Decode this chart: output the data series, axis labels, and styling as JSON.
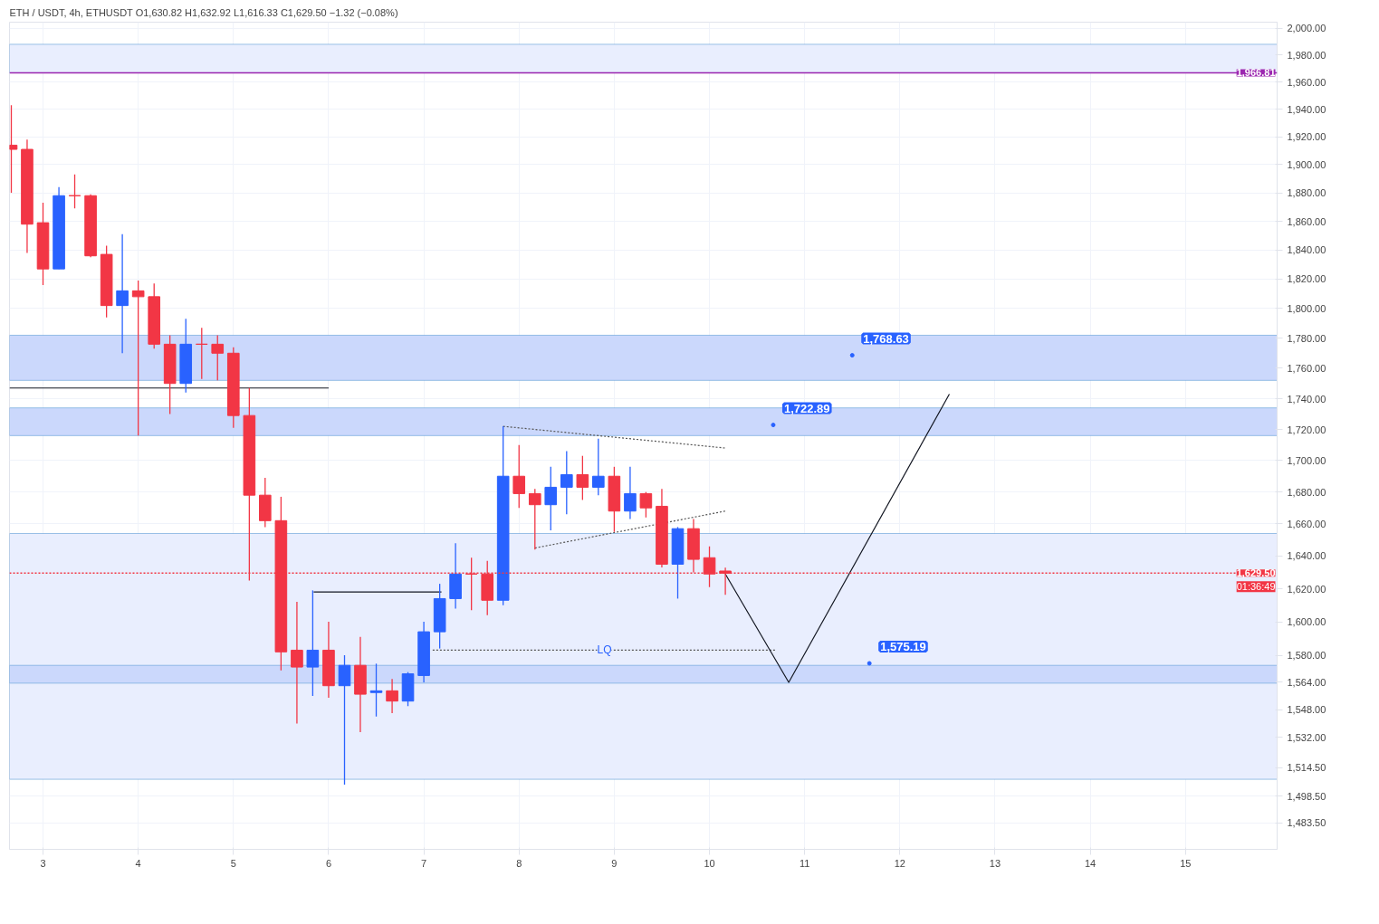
{
  "chart_data": {
    "type": "candlestick",
    "title": "ETH / USDT, 4h, ETHUSDT  O1,630.82  H1,632.92  L1,616.33  C1,629.50  −1.32 (−0.08%)",
    "x": [
      2.667,
      2.833,
      3,
      3.167,
      3.333,
      3.5,
      3.667,
      3.833,
      4,
      4.167,
      4.333,
      4.5,
      4.667,
      4.833,
      5,
      5.167,
      5.333,
      5.5,
      5.667,
      5.833,
      6,
      6.167,
      6.333,
      6.5,
      6.667,
      6.833,
      7,
      7.167,
      7.333,
      7.5,
      7.667,
      7.833,
      8,
      8.167,
      8.333,
      8.5,
      8.667,
      8.833,
      9,
      9.167,
      9.333,
      9.5,
      9.667,
      9.833,
      10,
      10.167
    ],
    "ohlc": [
      [
        1914,
        1943,
        1880,
        1911
      ],
      [
        1911,
        1918,
        1838,
        1858
      ],
      [
        1859,
        1873,
        1816,
        1827
      ],
      [
        1827,
        1884,
        1827,
        1878
      ],
      [
        1878,
        1893,
        1869,
        1878
      ],
      [
        1878,
        1879,
        1835,
        1836
      ],
      [
        1837,
        1843,
        1794,
        1802
      ],
      [
        1802,
        1851,
        1770,
        1812
      ],
      [
        1812,
        1819,
        1716,
        1808
      ],
      [
        1808,
        1817,
        1773,
        1776
      ],
      [
        1776,
        1782,
        1730,
        1750
      ],
      [
        1750,
        1793,
        1744,
        1776
      ],
      [
        1776,
        1787,
        1753,
        1776
      ],
      [
        1776,
        1782,
        1752,
        1770
      ],
      [
        1770,
        1774,
        1721,
        1729
      ],
      [
        1729,
        1747,
        1625,
        1678
      ],
      [
        1678,
        1689,
        1658,
        1662
      ],
      [
        1662,
        1677,
        1571,
        1582
      ],
      [
        1583,
        1612,
        1540,
        1573
      ],
      [
        1573,
        1619,
        1556,
        1583
      ],
      [
        1583,
        1600,
        1555,
        1562
      ],
      [
        1562,
        1580,
        1505,
        1574
      ],
      [
        1574,
        1591,
        1535,
        1557
      ],
      [
        1558,
        1575,
        1544,
        1559
      ],
      [
        1559,
        1566,
        1546,
        1553
      ],
      [
        1553,
        1570,
        1550,
        1569
      ],
      [
        1568,
        1600,
        1564,
        1594
      ],
      [
        1594,
        1623,
        1584,
        1614
      ],
      [
        1614,
        1648,
        1608,
        1629
      ],
      [
        1629,
        1639,
        1607,
        1629
      ],
      [
        1629,
        1637,
        1604,
        1613
      ],
      [
        1613,
        1722,
        1610,
        1690
      ],
      [
        1690,
        1710,
        1670,
        1679
      ],
      [
        1679,
        1682,
        1644,
        1672
      ],
      [
        1672,
        1696,
        1656,
        1683
      ],
      [
        1683,
        1706,
        1666,
        1691
      ],
      [
        1691,
        1703,
        1675,
        1683
      ],
      [
        1683,
        1714,
        1678,
        1690
      ],
      [
        1690,
        1696,
        1655,
        1668
      ],
      [
        1668,
        1696,
        1663,
        1679
      ],
      [
        1679,
        1680,
        1664,
        1670
      ],
      [
        1671,
        1682,
        1633,
        1635
      ],
      [
        1635,
        1658,
        1614,
        1657
      ],
      [
        1657,
        1663,
        1630,
        1638
      ],
      [
        1639,
        1646,
        1621,
        1629
      ],
      [
        1630.82,
        1632.92,
        1616.33,
        1629.5
      ]
    ],
    "colors": [
      "#f23645",
      "#f23645",
      "#f23645",
      "#2962ff",
      "#f23645",
      "#f23645",
      "#f23645",
      "#2962ff",
      "#f23645",
      "#f23645",
      "#f23645",
      "#2962ff",
      "#f23645",
      "#f23645",
      "#f23645",
      "#f23645",
      "#f23645",
      "#f23645",
      "#f23645",
      "#2962ff",
      "#f23645",
      "#2962ff",
      "#f23645",
      "#2962ff",
      "#f23645",
      "#2962ff",
      "#2962ff",
      "#2962ff",
      "#2962ff",
      "#f23645",
      "#f23645",
      "#2962ff",
      "#f23645",
      "#f23645",
      "#2962ff",
      "#2962ff",
      "#f23645",
      "#2962ff",
      "#f23645",
      "#2962ff",
      "#f23645",
      "#f23645",
      "#2962ff",
      "#f23645",
      "#f23645",
      "#f23645"
    ],
    "series": [
      {
        "type": "line",
        "color": "#131722",
        "x": [
          2.648,
          6.0
        ],
        "values": [
          1747,
          1747
        ]
      },
      {
        "type": "line",
        "color": "#131722",
        "x": [
          5.843,
          7.185
        ],
        "values": [
          1618,
          1618
        ]
      },
      {
        "type": "line",
        "color": "#555555",
        "line_style": "dotted",
        "x": [
          7.833,
          10.167
        ],
        "values": [
          1722,
          1708
        ]
      },
      {
        "type": "line",
        "color": "#555555",
        "line_style": "dotted",
        "x": [
          8.167,
          10.167
        ],
        "values": [
          1645,
          1668
        ]
      },
      {
        "type": "line",
        "name": "LQ",
        "color": "#555555",
        "line_style": "dotted",
        "x": [
          7.093,
          10.7
        ],
        "values": [
          1583,
          1583
        ]
      },
      {
        "type": "line",
        "color": "#131722",
        "x": [
          10.167,
          10.833,
          12.52
        ],
        "values": [
          1629,
          1564,
          1743
        ]
      }
    ],
    "bands": [
      {
        "axis": "y",
        "from": 1508,
        "to": 1654,
        "color": "#e9eefe"
      },
      {
        "axis": "y",
        "from": 1966.81,
        "to": 1988,
        "color": "#e9eefe"
      },
      {
        "axis": "y",
        "from": 1752,
        "to": 1782,
        "color": "#cbd8fc"
      },
      {
        "axis": "y",
        "from": 1716,
        "to": 1734,
        "color": "#cbd8fc"
      },
      {
        "axis": "y",
        "from": 1563.5,
        "to": 1574,
        "color": "#cbd8fc"
      }
    ],
    "ref_lines": [
      {
        "axis": "y",
        "value": 1966.81,
        "label": "1,966.81",
        "color": "#9c27b0",
        "line_style": "solid"
      },
      {
        "axis": "y",
        "value": 1629.5,
        "label": "1,629.50",
        "color": "#f23645",
        "line_style": "dotted"
      }
    ],
    "annotations": [
      {
        "text": "1,768.63",
        "x": 11.5,
        "y": 1768.63
      },
      {
        "text": "1,722.89",
        "x": 10.67,
        "y": 1722.89
      },
      {
        "text": "1,575.19",
        "x": 11.68,
        "y": 1575.19
      },
      "01:36:49"
    ],
    "log": true,
    "grid": true,
    "xlim": [
      2.648,
      15.963
    ],
    "xticks": [
      3,
      4,
      5,
      6,
      7,
      8,
      9,
      10,
      11,
      12,
      13,
      14,
      15
    ],
    "ylim": [
      1468.8,
      2004.6
    ],
    "yticks": [
      {
        "value": 1483.5,
        "label": "1,483.50"
      },
      {
        "value": 1498.5,
        "label": "1,498.50"
      },
      {
        "value": 1514.5,
        "label": "1,514.50"
      },
      {
        "value": 1532,
        "label": "1,532.00"
      },
      {
        "value": 1548,
        "label": "1,548.00"
      },
      {
        "value": 1564,
        "label": "1,564.00"
      },
      {
        "value": 1580,
        "label": "1,580.00"
      },
      {
        "value": 1600,
        "label": "1,600.00"
      },
      {
        "value": 1620,
        "label": "1,620.00"
      },
      {
        "value": 1640,
        "label": "1,640.00"
      },
      {
        "value": 1660,
        "label": "1,660.00"
      },
      {
        "value": 1680,
        "label": "1,680.00"
      },
      {
        "value": 1700,
        "label": "1,700.00"
      },
      {
        "value": 1720,
        "label": "1,720.00"
      },
      {
        "value": 1740,
        "label": "1,740.00"
      },
      {
        "value": 1760,
        "label": "1,760.00"
      },
      {
        "value": 1780,
        "label": "1,780.00"
      },
      {
        "value": 1800,
        "label": "1,800.00"
      },
      {
        "value": 1820,
        "label": "1,820.00"
      },
      {
        "value": 1840,
        "label": "1,840.00"
      },
      {
        "value": 1860,
        "label": "1,860.00"
      },
      {
        "value": 1880,
        "label": "1,880.00"
      },
      {
        "value": 1900,
        "label": "1,900.00"
      },
      {
        "value": 1920,
        "label": "1,920.00"
      },
      {
        "value": 1940,
        "label": "1,940.00"
      },
      {
        "value": 1960,
        "label": "1,960.00"
      },
      {
        "value": 1980,
        "label": "1,980.00"
      },
      {
        "value": 2000,
        "label": "2,000.00"
      }
    ]
  }
}
